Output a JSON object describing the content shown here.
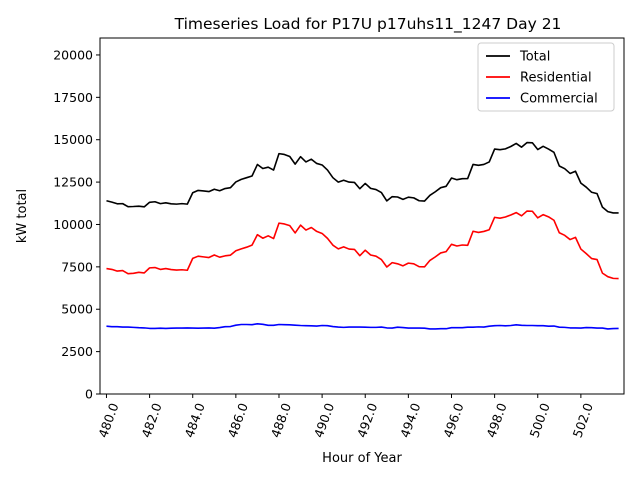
{
  "chart_data": {
    "type": "line",
    "title": "Timeseries Load for P17U p17uhs11_1247  Day 21",
    "xlabel": "Hour of Year",
    "ylabel": "kW total",
    "xlim": [
      479.7,
      504.0
    ],
    "ylim": [
      0,
      21000
    ],
    "x_ticks": [
      480,
      482,
      484,
      486,
      488,
      490,
      492,
      494,
      496,
      498,
      500,
      502
    ],
    "x_tick_labels": [
      "480.0",
      "482.0",
      "484.0",
      "486.0",
      "488.0",
      "490.0",
      "492.0",
      "494.0",
      "496.0",
      "498.0",
      "500.0",
      "502.0"
    ],
    "y_ticks": [
      0,
      2500,
      5000,
      7500,
      10000,
      12500,
      15000,
      17500,
      20000
    ],
    "y_tick_labels": [
      "0",
      "2500",
      "5000",
      "7500",
      "10000",
      "12500",
      "15000",
      "17500",
      "20000"
    ],
    "legend_position": "top-right",
    "x_start": 480.0,
    "x_step": 0.25,
    "series": [
      {
        "name": "Total",
        "color": "#000000",
        "values": [
          11400,
          11320,
          11220,
          11230,
          11050,
          11060,
          11080,
          11040,
          11310,
          11340,
          11230,
          11280,
          11220,
          11200,
          11230,
          11200,
          11870,
          12010,
          11980,
          11940,
          12080,
          11990,
          12120,
          12170,
          12510,
          12660,
          12760,
          12860,
          13540,
          13300,
          13380,
          13210,
          14180,
          14130,
          14010,
          13560,
          14000,
          13690,
          13850,
          13600,
          13510,
          13210,
          12760,
          12500,
          12610,
          12500,
          12480,
          12110,
          12420,
          12130,
          12060,
          11880,
          11390,
          11640,
          11620,
          11480,
          11610,
          11570,
          11400,
          11380,
          11720,
          11930,
          12170,
          12250,
          12740,
          12640,
          12700,
          12710,
          13540,
          13490,
          13540,
          13690,
          14450,
          14410,
          14460,
          14600,
          14780,
          14560,
          14830,
          14820,
          14420,
          14610,
          14450,
          14260,
          13450,
          13290,
          13010,
          13140,
          12440,
          12200,
          11900,
          11820,
          11020,
          10760,
          10680,
          10680
        ]
      },
      {
        "name": "Residential",
        "color": "#ff0000",
        "values": [
          7400,
          7350,
          7250,
          7280,
          7100,
          7120,
          7180,
          7140,
          7440,
          7460,
          7350,
          7400,
          7340,
          7310,
          7330,
          7300,
          8000,
          8130,
          8090,
          8050,
          8200,
          8070,
          8150,
          8190,
          8450,
          8560,
          8660,
          8780,
          9400,
          9190,
          9330,
          9170,
          10080,
          10030,
          9930,
          9500,
          9960,
          9670,
          9820,
          9590,
          9470,
          9180,
          8780,
          8560,
          8680,
          8550,
          8530,
          8160,
          8480,
          8200,
          8130,
          7930,
          7490,
          7750,
          7680,
          7560,
          7720,
          7680,
          7510,
          7500,
          7880,
          8090,
          8320,
          8400,
          8830,
          8730,
          8790,
          8770,
          9600,
          9530,
          9590,
          9690,
          10420,
          10370,
          10440,
          10560,
          10700,
          10510,
          10790,
          10780,
          10390,
          10580,
          10450,
          10250,
          9510,
          9360,
          9110,
          9240,
          8550,
          8280,
          7990,
          7930,
          7130,
          6920,
          6820,
          6810
        ]
      },
      {
        "name": "Commercial",
        "color": "#0000ff",
        "values": [
          4000,
          3970,
          3970,
          3950,
          3950,
          3930,
          3910,
          3900,
          3870,
          3870,
          3880,
          3870,
          3880,
          3890,
          3890,
          3900,
          3890,
          3880,
          3890,
          3900,
          3880,
          3920,
          3970,
          3980,
          4060,
          4100,
          4100,
          4090,
          4140,
          4110,
          4050,
          4050,
          4100,
          4090,
          4080,
          4060,
          4040,
          4030,
          4020,
          4010,
          4040,
          4030,
          3980,
          3950,
          3930,
          3950,
          3950,
          3950,
          3940,
          3930,
          3930,
          3950,
          3900,
          3890,
          3940,
          3920,
          3890,
          3890,
          3890,
          3880,
          3840,
          3840,
          3850,
          3850,
          3910,
          3910,
          3910,
          3940,
          3940,
          3960,
          3950,
          4000,
          4030,
          4040,
          4020,
          4040,
          4080,
          4050,
          4040,
          4040,
          4030,
          4030,
          4000,
          4010,
          3940,
          3930,
          3900,
          3900,
          3890,
          3920,
          3910,
          3890,
          3890,
          3840,
          3860,
          3870
        ]
      }
    ]
  }
}
